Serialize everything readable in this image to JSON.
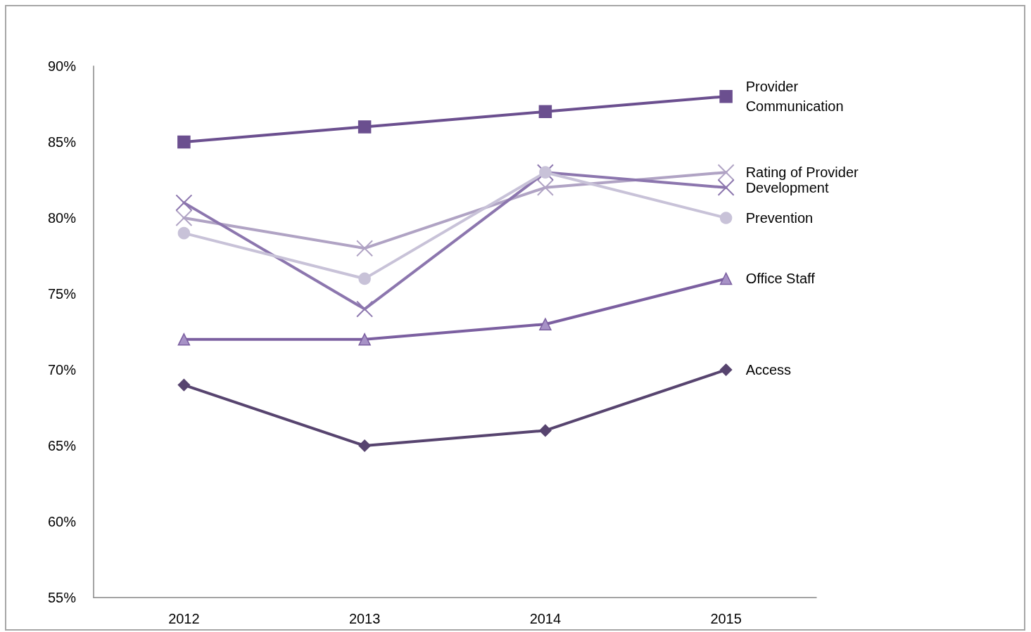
{
  "chart_data": {
    "type": "line",
    "categories": [
      "2012",
      "2013",
      "2014",
      "2015"
    ],
    "series": [
      {
        "name": "Provider Communication",
        "color": "#6b4f8f",
        "marker": "square",
        "values": [
          85,
          86,
          87,
          88
        ]
      },
      {
        "name": "Rating of Provider",
        "color": "#b0a3c4",
        "marker": "cross",
        "values": [
          80,
          78,
          82,
          83
        ]
      },
      {
        "name": "Development",
        "color": "#8c76ae",
        "marker": "cross",
        "values": [
          81,
          74,
          83,
          82
        ]
      },
      {
        "name": "Prevention",
        "color": "#c8c2d8",
        "marker": "circle",
        "values": [
          79,
          76,
          83,
          80
        ]
      },
      {
        "name": "Office Staff",
        "color": "#7b5fa0",
        "marker": "triangle",
        "values": [
          72,
          72,
          73,
          76
        ]
      },
      {
        "name": "Access",
        "color": "#57446f",
        "marker": "diamond",
        "values": [
          69,
          65,
          66,
          70
        ]
      }
    ],
    "ylim": [
      55,
      90
    ],
    "yticks": [
      {
        "value": 55,
        "label": "55%"
      },
      {
        "value": 60,
        "label": "60%"
      },
      {
        "value": 65,
        "label": "65%"
      },
      {
        "value": 70,
        "label": "70%"
      },
      {
        "value": 75,
        "label": "75%"
      },
      {
        "value": 80,
        "label": "80%"
      },
      {
        "value": 85,
        "label": "85%"
      },
      {
        "value": 90,
        "label": "90%"
      }
    ],
    "grid": false,
    "legend": false,
    "line_style": "solid"
  }
}
